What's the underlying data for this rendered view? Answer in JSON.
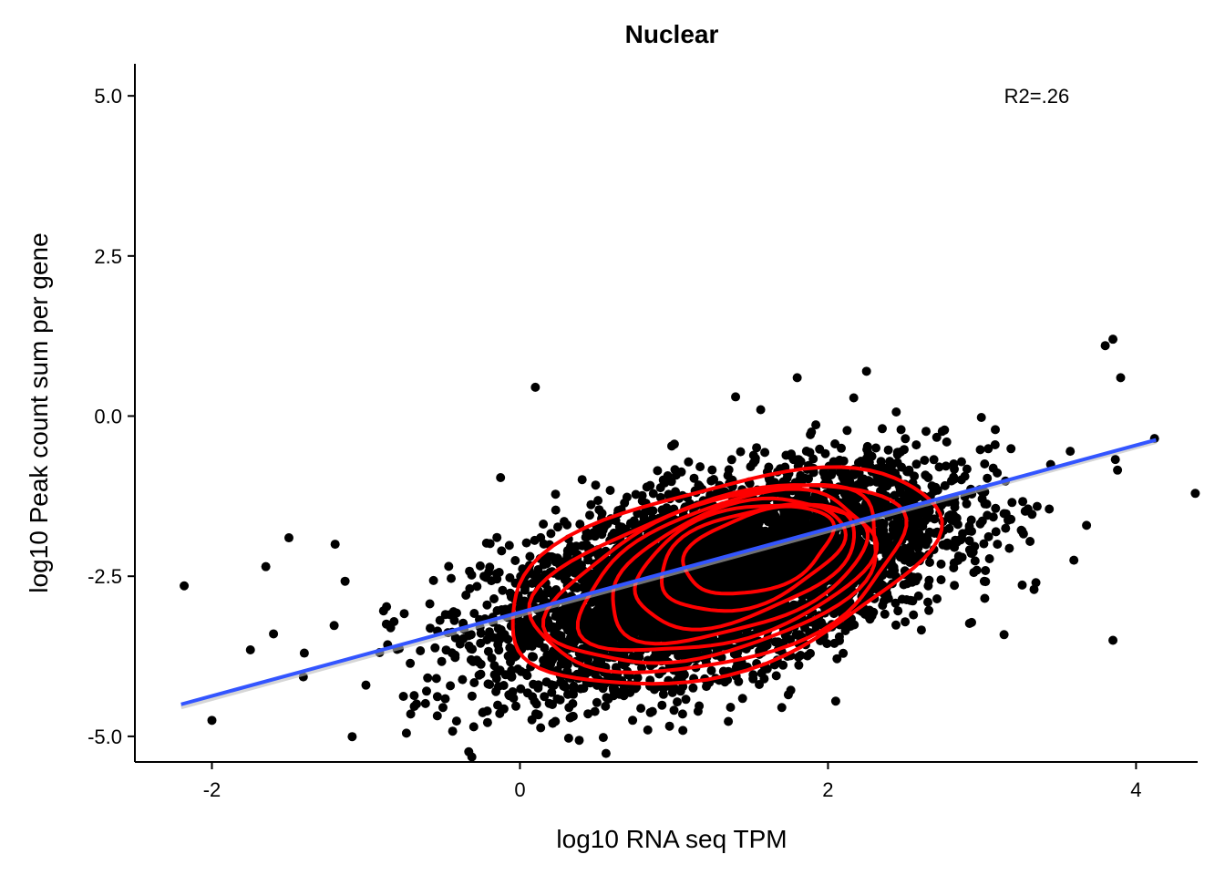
{
  "chart_data": {
    "type": "scatter",
    "title": "Nuclear",
    "xlabel": "log10 RNA seq TPM",
    "ylabel": "log10 Peak count sum per gene",
    "xlim": [
      -2.5,
      4.4
    ],
    "ylim": [
      -5.4,
      5.5
    ],
    "x_ticks": [
      {
        "value": -2,
        "label": "-2"
      },
      {
        "value": 0,
        "label": "0"
      },
      {
        "value": 2,
        "label": "2"
      },
      {
        "value": 4,
        "label": "4"
      }
    ],
    "y_ticks": [
      {
        "value": 5.0,
        "label": "5.0"
      },
      {
        "value": 2.5,
        "label": "2.5"
      },
      {
        "value": 0.0,
        "label": "0.0"
      },
      {
        "value": -2.5,
        "label": "-2.5"
      },
      {
        "value": -5.0,
        "label": "-5.0"
      }
    ],
    "grid": false,
    "annotation": {
      "text": "R2=.26",
      "x": 3.0,
      "y": 5.0
    },
    "regression_line": {
      "x": [
        -2.2,
        4.13
      ],
      "y": [
        -4.5,
        -0.37
      ],
      "color": "#3355ff"
    },
    "point_cloud": {
      "center": [
        1.3,
        -2.5
      ],
      "slope": 0.62,
      "sd_x": 0.72,
      "sd_residual": 0.68,
      "count": 5200,
      "color": "#000000"
    },
    "outliers": [
      [
        -2.18,
        -2.65
      ],
      [
        -2.0,
        -4.75
      ],
      [
        0.1,
        0.45
      ],
      [
        3.85,
        1.2
      ],
      [
        3.9,
        0.6
      ],
      [
        3.8,
        1.1
      ],
      [
        1.8,
        0.6
      ],
      [
        2.25,
        0.7
      ],
      [
        1.4,
        0.3
      ],
      [
        4.12,
        -0.35
      ],
      [
        3.85,
        -3.5
      ],
      [
        3.35,
        -2.6
      ],
      [
        3.1,
        -2.0
      ],
      [
        -1.5,
        -1.9
      ],
      [
        -1.4,
        -3.7
      ],
      [
        -1.6,
        -3.4
      ],
      [
        -1.2,
        -2.0
      ],
      [
        -0.3,
        -4.85
      ],
      [
        0.83,
        -4.9
      ],
      [
        1.7,
        -4.55
      ],
      [
        -1.65,
        -2.35
      ],
      [
        -1.0,
        -4.2
      ],
      [
        -0.5,
        -4.55
      ],
      [
        2.05,
        -4.45
      ],
      [
        -1.75,
        -3.65
      ]
    ],
    "density_contours": [
      {
        "cx": 1.55,
        "cy": -2.1,
        "rx": 0.5,
        "ry": 0.6,
        "rot": -18
      },
      {
        "cx": 1.5,
        "cy": -2.2,
        "rx": 0.62,
        "ry": 0.72,
        "rot": -18
      },
      {
        "cx": 1.45,
        "cy": -2.3,
        "rx": 0.74,
        "ry": 0.84,
        "rot": -18
      },
      {
        "cx": 1.4,
        "cy": -2.4,
        "rx": 0.86,
        "ry": 0.95,
        "rot": -18
      },
      {
        "cx": 1.35,
        "cy": -2.45,
        "rx": 0.99,
        "ry": 1.06,
        "rot": -18
      },
      {
        "cx": 1.3,
        "cy": -2.5,
        "rx": 1.12,
        "ry": 1.16,
        "rot": -18
      },
      {
        "cx": 1.3,
        "cy": -2.55,
        "rx": 1.24,
        "ry": 1.26,
        "rot": -16
      },
      {
        "cx": 1.3,
        "cy": -2.5,
        "rx": 1.44,
        "ry": 1.44,
        "rot": -16
      }
    ],
    "contour_color": "#ff0000"
  }
}
